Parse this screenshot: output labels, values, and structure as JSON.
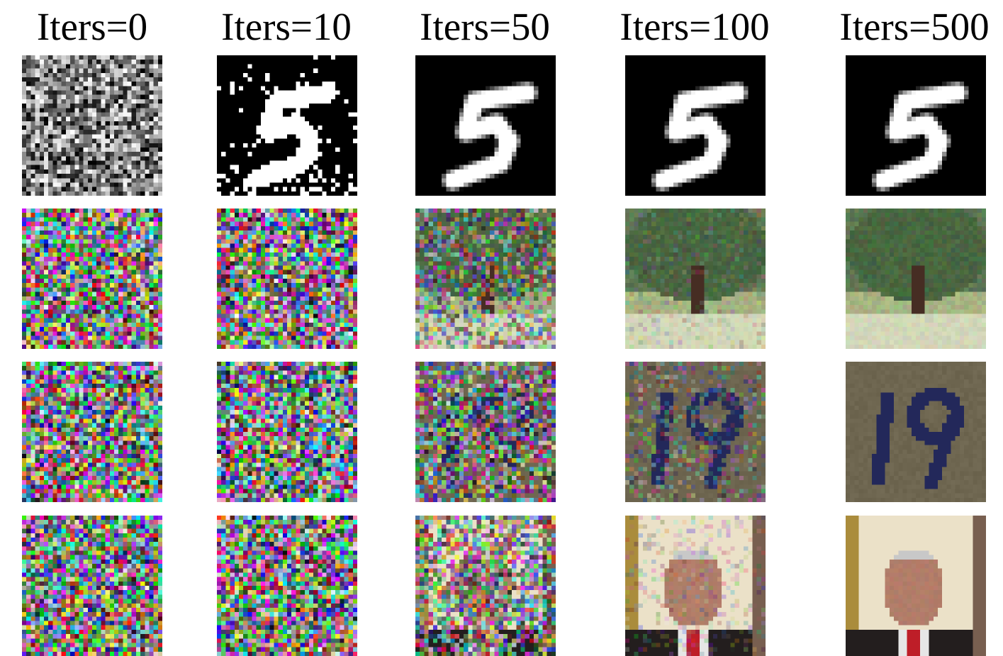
{
  "column_headers": [
    "Iters=0",
    "Iters=10",
    "Iters=50",
    "Iters=100",
    "Iters=500"
  ],
  "rows": [
    {
      "content": "handwritten digit 5",
      "cells": [
        {
          "kind": "noise-gray"
        },
        {
          "kind": "digit-binary"
        },
        {
          "kind": "digit-smooth"
        },
        {
          "kind": "digit-smooth"
        },
        {
          "kind": "digit-smooth"
        }
      ]
    },
    {
      "content": "tree",
      "cells": [
        {
          "kind": "noise-color",
          "clarity": 0.0
        },
        {
          "kind": "noise-color",
          "clarity": 0.0
        },
        {
          "kind": "tree",
          "clarity": 0.35
        },
        {
          "kind": "tree",
          "clarity": 0.8
        },
        {
          "kind": "tree",
          "clarity": 1.0
        }
      ]
    },
    {
      "content": "house number 19",
      "cells": [
        {
          "kind": "noise-color",
          "clarity": 0.0
        },
        {
          "kind": "noise-color",
          "clarity": 0.0
        },
        {
          "kind": "number",
          "clarity": 0.2
        },
        {
          "kind": "number",
          "clarity": 0.6
        },
        {
          "kind": "number",
          "clarity": 1.0
        }
      ]
    },
    {
      "content": "face",
      "cells": [
        {
          "kind": "noise-color",
          "clarity": 0.0
        },
        {
          "kind": "noise-color",
          "clarity": 0.0
        },
        {
          "kind": "face",
          "clarity": 0.2
        },
        {
          "kind": "face",
          "clarity": 0.75
        },
        {
          "kind": "face",
          "clarity": 1.0
        }
      ]
    }
  ]
}
